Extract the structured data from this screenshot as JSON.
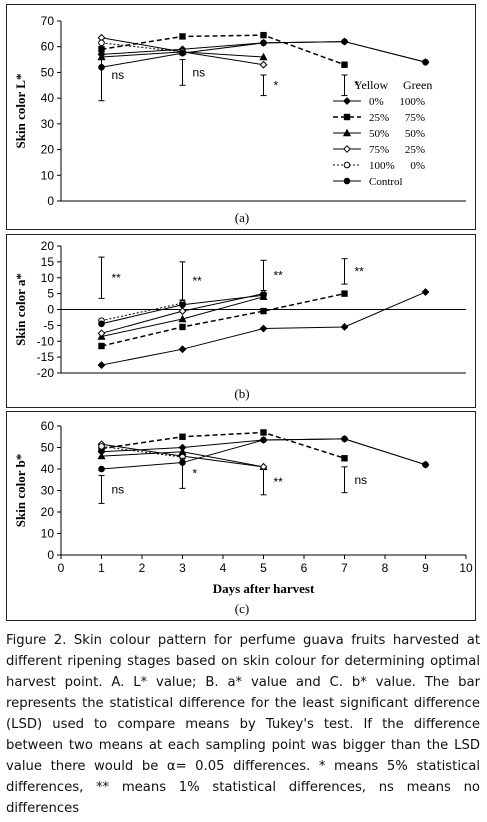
{
  "chart_data": [
    {
      "id": "A",
      "type": "line",
      "panel_label": "(a)",
      "ylabel": "Skin color  L*",
      "xlabel": "",
      "ylim": [
        0,
        70
      ],
      "yticks": [
        0,
        10,
        20,
        30,
        40,
        50,
        60,
        70
      ],
      "xlim": [
        0,
        10
      ],
      "show_x_ticks": false,
      "zero_axis_line": false,
      "legend": {
        "placement": "right",
        "header": [
          "Yellow",
          "Green"
        ],
        "entries": [
          {
            "series": "0%",
            "yellow": "0%",
            "green": "100%"
          },
          {
            "series": "25%",
            "yellow": "25%",
            "green": "75%"
          },
          {
            "series": "50%",
            "yellow": "50%",
            "green": "50%"
          },
          {
            "series": "75%",
            "yellow": "75%",
            "green": "25%"
          },
          {
            "series": "100%",
            "yellow": "100%",
            "green": "0%"
          },
          {
            "series": "Control",
            "yellow": "Control",
            "green": ""
          }
        ]
      },
      "series": [
        {
          "name": "0%",
          "marker": "diamond-filled",
          "dash": "solid",
          "points": [
            [
              1,
              57
            ],
            [
              3,
              59
            ],
            [
              5,
              61.5
            ],
            [
              7,
              62
            ],
            [
              9,
              54
            ]
          ]
        },
        {
          "name": "25%",
          "marker": "square-filled",
          "dash": "dash",
          "points": [
            [
              1,
              59
            ],
            [
              3,
              64
            ],
            [
              5,
              64.5
            ],
            [
              7,
              53
            ]
          ]
        },
        {
          "name": "50%",
          "marker": "triangle-filled",
          "dash": "solid",
          "points": [
            [
              1,
              56
            ],
            [
              3,
              58
            ],
            [
              5,
              56
            ]
          ]
        },
        {
          "name": "75%",
          "marker": "diamond-open",
          "dash": "solid",
          "points": [
            [
              1,
              63.5
            ],
            [
              3,
              58
            ],
            [
              5,
              53
            ]
          ]
        },
        {
          "name": "100%",
          "marker": "circle-open",
          "dash": "dot",
          "points": [
            [
              1,
              61.5
            ],
            [
              3,
              58
            ]
          ]
        },
        {
          "name": "Control",
          "marker": "circle-filled",
          "dash": "solid",
          "points": [
            [
              1,
              52
            ],
            [
              3,
              57.5
            ],
            [
              5,
              61.5
            ],
            [
              7,
              62
            ],
            [
              9,
              54
            ]
          ]
        }
      ],
      "lsd_bars": [
        {
          "x": 1,
          "y_low": 39,
          "y_high": 59,
          "label": "ns"
        },
        {
          "x": 3,
          "y_low": 45,
          "y_high": 55,
          "label": "ns"
        },
        {
          "x": 5,
          "y_low": 41,
          "y_high": 49,
          "label": "*"
        },
        {
          "x": 7,
          "y_low": 41,
          "y_high": 49,
          "label": "*"
        }
      ]
    },
    {
      "id": "B",
      "type": "line",
      "panel_label": "(b)",
      "ylabel": "Skin color a*",
      "xlabel": "",
      "ylim": [
        -20,
        20
      ],
      "yticks": [
        -20,
        -15,
        -10,
        -5,
        0,
        5,
        10,
        15,
        20
      ],
      "xlim": [
        0,
        10
      ],
      "show_x_ticks": false,
      "zero_axis_line": true,
      "series": [
        {
          "name": "0%",
          "marker": "diamond-filled",
          "dash": "solid",
          "points": [
            [
              1,
              -17.5
            ],
            [
              3,
              -12.5
            ],
            [
              5,
              -6
            ],
            [
              7,
              -5.5
            ],
            [
              9,
              5.5
            ]
          ]
        },
        {
          "name": "25%",
          "marker": "square-filled",
          "dash": "dash",
          "points": [
            [
              1,
              -11.5
            ],
            [
              3,
              -5.5
            ],
            [
              5,
              -0.5
            ],
            [
              7,
              5
            ]
          ]
        },
        {
          "name": "50%",
          "marker": "triangle-filled",
          "dash": "solid",
          "points": [
            [
              1,
              -8.5
            ],
            [
              3,
              -3
            ],
            [
              5,
              4
            ]
          ]
        },
        {
          "name": "75%",
          "marker": "diamond-open",
          "dash": "solid",
          "points": [
            [
              1,
              -7.5
            ],
            [
              3,
              -0.5
            ],
            [
              5,
              5
            ]
          ]
        },
        {
          "name": "100%",
          "marker": "circle-open",
          "dash": "dot",
          "points": [
            [
              1,
              -3.5
            ],
            [
              3,
              2
            ]
          ]
        },
        {
          "name": "Control",
          "marker": "circle-filled",
          "dash": "solid",
          "points": [
            [
              1,
              -4.5
            ],
            [
              3,
              1.5
            ],
            [
              5,
              4.5
            ]
          ]
        }
      ],
      "lsd_bars": [
        {
          "x": 1,
          "y_low": 3.5,
          "y_high": 16.5,
          "label": "**"
        },
        {
          "x": 3,
          "y_low": 3,
          "y_high": 15,
          "label": "**"
        },
        {
          "x": 5,
          "y_low": 6,
          "y_high": 15.5,
          "label": "**"
        },
        {
          "x": 7,
          "y_low": 8,
          "y_high": 16,
          "label": "**"
        }
      ]
    },
    {
      "id": "C",
      "type": "line",
      "panel_label": "(c)",
      "ylabel": "Skin color b*",
      "xlabel": "Days after harvest",
      "ylim": [
        0,
        60
      ],
      "yticks": [
        0,
        10,
        20,
        30,
        40,
        50,
        60
      ],
      "xlim": [
        0,
        10
      ],
      "xticks": [
        0,
        1,
        2,
        3,
        4,
        5,
        6,
        7,
        8,
        9,
        10
      ],
      "show_x_ticks": true,
      "zero_axis_line": false,
      "series": [
        {
          "name": "0%",
          "marker": "diamond-filled",
          "dash": "solid",
          "points": [
            [
              1,
              48
            ],
            [
              3,
              50
            ],
            [
              5,
              53.5
            ],
            [
              7,
              54
            ],
            [
              9,
              42
            ]
          ]
        },
        {
          "name": "25%",
          "marker": "square-filled",
          "dash": "dash",
          "points": [
            [
              1,
              49.5
            ],
            [
              3,
              55
            ],
            [
              5,
              57
            ],
            [
              7,
              45
            ]
          ]
        },
        {
          "name": "50%",
          "marker": "triangle-filled",
          "dash": "solid",
          "points": [
            [
              1,
              46
            ],
            [
              3,
              48
            ],
            [
              5,
              41
            ]
          ]
        },
        {
          "name": "75%",
          "marker": "diamond-open",
          "dash": "solid",
          "points": [
            [
              1,
              51.5
            ],
            [
              3,
              46
            ],
            [
              5,
              41
            ]
          ]
        },
        {
          "name": "100%",
          "marker": "circle-open",
          "dash": "dot",
          "points": [
            [
              1,
              50.5
            ],
            [
              3,
              45.5
            ]
          ]
        },
        {
          "name": "Control",
          "marker": "circle-filled",
          "dash": "solid",
          "points": [
            [
              1,
              40
            ],
            [
              3,
              43
            ],
            [
              5,
              53.5
            ],
            [
              7,
              54
            ],
            [
              9,
              42
            ]
          ]
        }
      ],
      "lsd_bars": [
        {
          "x": 1,
          "y_low": 24,
          "y_high": 37,
          "label": "ns"
        },
        {
          "x": 3,
          "y_low": 31,
          "y_high": 45,
          "label": "*"
        },
        {
          "x": 5,
          "y_low": 28,
          "y_high": 40,
          "label": "**"
        },
        {
          "x": 7,
          "y_low": 29,
          "y_high": 41,
          "label": "ns"
        }
      ]
    }
  ],
  "caption": {
    "text": "Figure 2. Skin colour pattern for perfume guava fruits harvested at different ripening stages based on skin colour for determining optimal harvest point. A. L* value; B. a* value and C. b* value. The bar represents the statistical difference for the least significant difference (LSD) used to compare means by Tukey's test. If the difference between two means at each sampling point was bigger than the LSD value there would be α= 0.05 differences. * means 5% statistical differences, ** means 1% statistical differences, ns means no differences"
  }
}
